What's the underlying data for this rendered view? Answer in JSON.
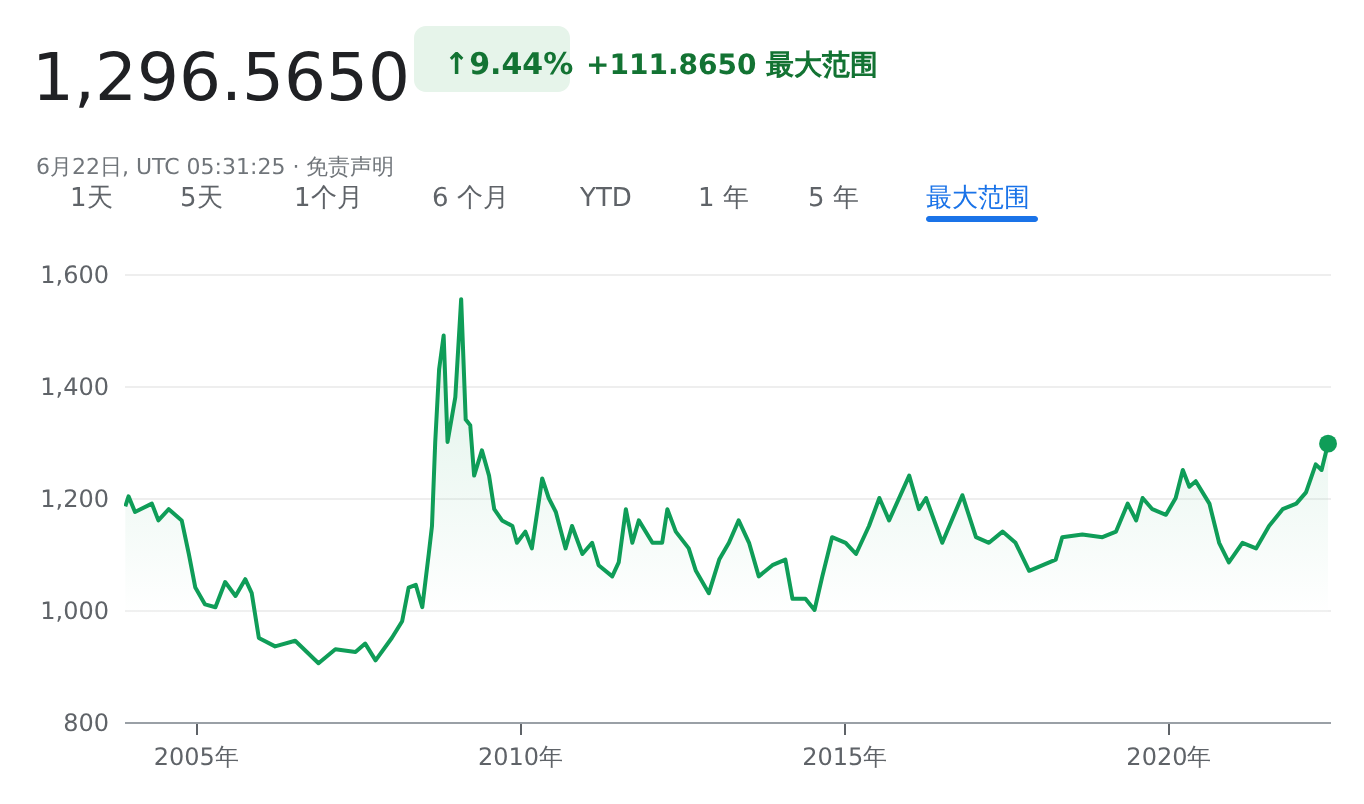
{
  "chart_data": {
    "type": "area",
    "title": "1,296.5650",
    "subtitle": "6月22日, UTC 05:31:25 · 免责声明",
    "annotations": [
      "↑9.44%",
      "+111.8650 最大范围",
      "1天",
      "5天",
      "1个月",
      "6 个月",
      "YTD",
      "1 年",
      "5 年",
      "最大范围"
    ],
    "x": [
      2003.92,
      2003.97,
      2004.07,
      2004.33,
      2004.43,
      2004.59,
      2004.79,
      2004.9,
      2005.0,
      2005.15,
      2005.31,
      2005.46,
      2005.62,
      2005.77,
      2005.87,
      2005.98,
      2006.23,
      2006.54,
      2006.9,
      2007.16,
      2007.47,
      2007.62,
      2007.78,
      2008.03,
      2008.19,
      2008.29,
      2008.4,
      2008.5,
      2008.6,
      2008.65,
      2008.7,
      2008.76,
      2008.83,
      2008.89,
      2009.01,
      2009.1,
      2009.17,
      2009.24,
      2009.3,
      2009.42,
      2009.53,
      2009.61,
      2009.73,
      2009.89,
      2009.96,
      2010.09,
      2010.19,
      2010.35,
      2010.45,
      2010.56,
      2010.71,
      2010.81,
      2010.97,
      2011.12,
      2011.22,
      2011.43,
      2011.53,
      2011.64,
      2011.74,
      2011.84,
      2012.05,
      2012.2,
      2012.28,
      2012.41,
      2012.61,
      2012.72,
      2012.92,
      2013.08,
      2013.23,
      2013.38,
      2013.54,
      2013.69,
      2013.9,
      2014.1,
      2014.21,
      2014.41,
      2014.55,
      2014.67,
      2014.82,
      2015.03,
      2015.19,
      2015.39,
      2015.55,
      2015.7,
      2016.01,
      2016.16,
      2016.27,
      2016.52,
      2016.83,
      2017.04,
      2017.24,
      2017.45,
      2017.65,
      2017.86,
      2018.07,
      2018.27,
      2018.37,
      2018.68,
      2018.99,
      2019.2,
      2019.38,
      2019.51,
      2019.61,
      2019.76,
      2019.97,
      2020.12,
      2020.23,
      2020.33,
      2020.43,
      2020.64,
      2020.79,
      2020.94,
      2021.15,
      2021.36,
      2021.56,
      2021.77,
      2021.98,
      2022.13,
      2022.28,
      2022.37,
      2022.47
    ],
    "series": [
      {
        "color": "#0f9d58",
        "values": [
          1185,
          1203,
          1175,
          1190,
          1160,
          1180,
          1160,
          1100,
          1040,
          1010,
          1005,
          1050,
          1025,
          1055,
          1030,
          950,
          935,
          945,
          905,
          930,
          925,
          940,
          910,
          950,
          980,
          1040,
          1045,
          1005,
          1100,
          1150,
          1300,
          1430,
          1490,
          1300,
          1380,
          1555,
          1340,
          1330,
          1240,
          1285,
          1240,
          1180,
          1160,
          1150,
          1120,
          1140,
          1110,
          1235,
          1200,
          1175,
          1110,
          1150,
          1100,
          1120,
          1080,
          1060,
          1085,
          1180,
          1120,
          1160,
          1120,
          1120,
          1180,
          1140,
          1110,
          1070,
          1030,
          1090,
          1120,
          1160,
          1120,
          1060,
          1080,
          1090,
          1020,
          1020,
          1000,
          1060,
          1130,
          1120,
          1100,
          1150,
          1200,
          1160,
          1240,
          1180,
          1200,
          1120,
          1205,
          1130,
          1120,
          1140,
          1120,
          1070,
          1080,
          1090,
          1130,
          1135,
          1130,
          1140,
          1190,
          1160,
          1200,
          1180,
          1170,
          1200,
          1250,
          1220,
          1230,
          1190,
          1120,
          1085,
          1120,
          1110,
          1150,
          1180,
          1190,
          1210,
          1260,
          1250,
          1297
        ]
      }
    ],
    "xlim": [
      2003.9,
      2022.5
    ],
    "xticks": [
      {
        "value": 2005,
        "label": "2005年"
      },
      {
        "value": 2010,
        "label": "2010年"
      },
      {
        "value": 2015,
        "label": "2015年"
      },
      {
        "value": 2020,
        "label": "2020年"
      }
    ],
    "ylim": [
      800,
      1600
    ],
    "yticks": [
      {
        "value": 800,
        "label": "800"
      },
      {
        "value": 1000,
        "label": "1,000"
      },
      {
        "value": 1200,
        "label": "1,200"
      },
      {
        "value": 1400,
        "label": "1,400"
      },
      {
        "value": 1600,
        "label": "1,600"
      }
    ],
    "grid": "y"
  }
}
